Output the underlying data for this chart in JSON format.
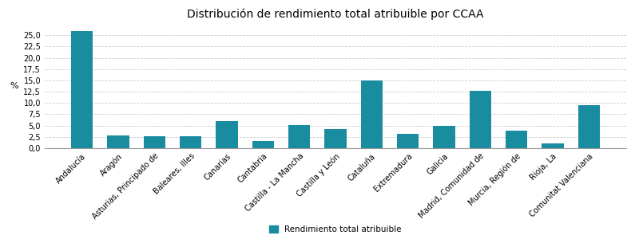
{
  "title": "Distribución de rendimiento total atribuible por CCAA",
  "categories": [
    "Andalucía",
    "Aragón",
    "Asturias, Principado de",
    "Baleares, Illes",
    "Canarias",
    "Cantabria",
    "Castilla - La Mancha",
    "Castilla y León",
    "Cataluña",
    "Extremadura",
    "Galicia",
    "Madrid, Comunidad de",
    "Murcia, Región de",
    "Rioja, La",
    "Comunitat Valenciana"
  ],
  "values": [
    26.0,
    2.8,
    2.6,
    2.6,
    6.0,
    1.5,
    5.1,
    4.3,
    15.0,
    3.2,
    5.0,
    12.7,
    3.8,
    1.0,
    9.6
  ],
  "bar_color": "#1a8ca0",
  "ylabel": "%",
  "ylim": [
    0,
    27.5
  ],
  "yticks": [
    0.0,
    2.5,
    5.0,
    7.5,
    10.0,
    12.5,
    15.0,
    17.5,
    20.0,
    22.5,
    25.0
  ],
  "legend_label": "Rendimiento total atribuible",
  "title_fontsize": 10,
  "tick_fontsize": 7,
  "ylabel_fontsize": 8,
  "background_color": "#ffffff",
  "grid_color": "#cccccc"
}
